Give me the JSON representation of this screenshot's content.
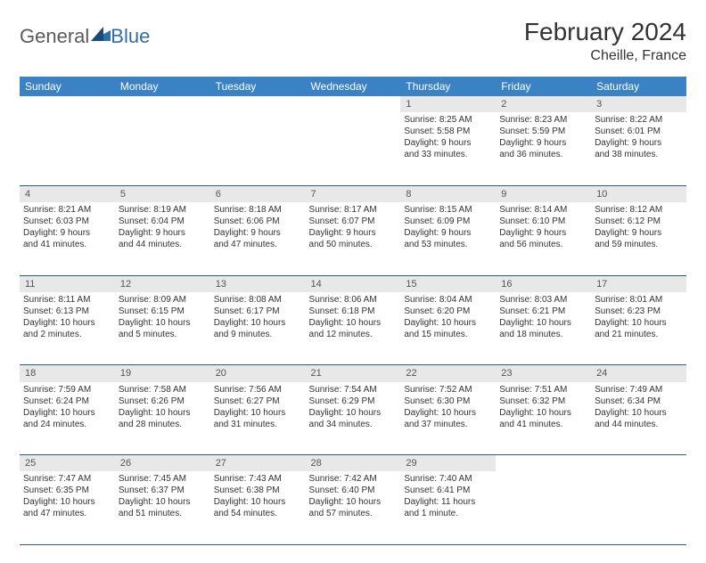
{
  "brand": {
    "part1": "General",
    "part2": "Blue"
  },
  "header": {
    "title": "February 2024",
    "location": "Cheille, France"
  },
  "style": {
    "header_bg": "#3b82c4",
    "header_text": "#ffffff",
    "daynum_bg": "#e8e8e8",
    "row_border": "#2c5a85",
    "body_text": "#333333",
    "logo_gray": "#5a5a5a",
    "logo_blue": "#2f6fa7",
    "title_fontsize": 28,
    "location_fontsize": 16,
    "dayhead_fontsize": 12,
    "cell_fontsize": 10
  },
  "weekdays": [
    "Sunday",
    "Monday",
    "Tuesday",
    "Wednesday",
    "Thursday",
    "Friday",
    "Saturday"
  ],
  "weeks": [
    [
      null,
      null,
      null,
      null,
      {
        "n": "1",
        "sr": "Sunrise: 8:25 AM",
        "ss": "Sunset: 5:58 PM",
        "d1": "Daylight: 9 hours",
        "d2": "and 33 minutes."
      },
      {
        "n": "2",
        "sr": "Sunrise: 8:23 AM",
        "ss": "Sunset: 5:59 PM",
        "d1": "Daylight: 9 hours",
        "d2": "and 36 minutes."
      },
      {
        "n": "3",
        "sr": "Sunrise: 8:22 AM",
        "ss": "Sunset: 6:01 PM",
        "d1": "Daylight: 9 hours",
        "d2": "and 38 minutes."
      }
    ],
    [
      {
        "n": "4",
        "sr": "Sunrise: 8:21 AM",
        "ss": "Sunset: 6:03 PM",
        "d1": "Daylight: 9 hours",
        "d2": "and 41 minutes."
      },
      {
        "n": "5",
        "sr": "Sunrise: 8:19 AM",
        "ss": "Sunset: 6:04 PM",
        "d1": "Daylight: 9 hours",
        "d2": "and 44 minutes."
      },
      {
        "n": "6",
        "sr": "Sunrise: 8:18 AM",
        "ss": "Sunset: 6:06 PM",
        "d1": "Daylight: 9 hours",
        "d2": "and 47 minutes."
      },
      {
        "n": "7",
        "sr": "Sunrise: 8:17 AM",
        "ss": "Sunset: 6:07 PM",
        "d1": "Daylight: 9 hours",
        "d2": "and 50 minutes."
      },
      {
        "n": "8",
        "sr": "Sunrise: 8:15 AM",
        "ss": "Sunset: 6:09 PM",
        "d1": "Daylight: 9 hours",
        "d2": "and 53 minutes."
      },
      {
        "n": "9",
        "sr": "Sunrise: 8:14 AM",
        "ss": "Sunset: 6:10 PM",
        "d1": "Daylight: 9 hours",
        "d2": "and 56 minutes."
      },
      {
        "n": "10",
        "sr": "Sunrise: 8:12 AM",
        "ss": "Sunset: 6:12 PM",
        "d1": "Daylight: 9 hours",
        "d2": "and 59 minutes."
      }
    ],
    [
      {
        "n": "11",
        "sr": "Sunrise: 8:11 AM",
        "ss": "Sunset: 6:13 PM",
        "d1": "Daylight: 10 hours",
        "d2": "and 2 minutes."
      },
      {
        "n": "12",
        "sr": "Sunrise: 8:09 AM",
        "ss": "Sunset: 6:15 PM",
        "d1": "Daylight: 10 hours",
        "d2": "and 5 minutes."
      },
      {
        "n": "13",
        "sr": "Sunrise: 8:08 AM",
        "ss": "Sunset: 6:17 PM",
        "d1": "Daylight: 10 hours",
        "d2": "and 9 minutes."
      },
      {
        "n": "14",
        "sr": "Sunrise: 8:06 AM",
        "ss": "Sunset: 6:18 PM",
        "d1": "Daylight: 10 hours",
        "d2": "and 12 minutes."
      },
      {
        "n": "15",
        "sr": "Sunrise: 8:04 AM",
        "ss": "Sunset: 6:20 PM",
        "d1": "Daylight: 10 hours",
        "d2": "and 15 minutes."
      },
      {
        "n": "16",
        "sr": "Sunrise: 8:03 AM",
        "ss": "Sunset: 6:21 PM",
        "d1": "Daylight: 10 hours",
        "d2": "and 18 minutes."
      },
      {
        "n": "17",
        "sr": "Sunrise: 8:01 AM",
        "ss": "Sunset: 6:23 PM",
        "d1": "Daylight: 10 hours",
        "d2": "and 21 minutes."
      }
    ],
    [
      {
        "n": "18",
        "sr": "Sunrise: 7:59 AM",
        "ss": "Sunset: 6:24 PM",
        "d1": "Daylight: 10 hours",
        "d2": "and 24 minutes."
      },
      {
        "n": "19",
        "sr": "Sunrise: 7:58 AM",
        "ss": "Sunset: 6:26 PM",
        "d1": "Daylight: 10 hours",
        "d2": "and 28 minutes."
      },
      {
        "n": "20",
        "sr": "Sunrise: 7:56 AM",
        "ss": "Sunset: 6:27 PM",
        "d1": "Daylight: 10 hours",
        "d2": "and 31 minutes."
      },
      {
        "n": "21",
        "sr": "Sunrise: 7:54 AM",
        "ss": "Sunset: 6:29 PM",
        "d1": "Daylight: 10 hours",
        "d2": "and 34 minutes."
      },
      {
        "n": "22",
        "sr": "Sunrise: 7:52 AM",
        "ss": "Sunset: 6:30 PM",
        "d1": "Daylight: 10 hours",
        "d2": "and 37 minutes."
      },
      {
        "n": "23",
        "sr": "Sunrise: 7:51 AM",
        "ss": "Sunset: 6:32 PM",
        "d1": "Daylight: 10 hours",
        "d2": "and 41 minutes."
      },
      {
        "n": "24",
        "sr": "Sunrise: 7:49 AM",
        "ss": "Sunset: 6:34 PM",
        "d1": "Daylight: 10 hours",
        "d2": "and 44 minutes."
      }
    ],
    [
      {
        "n": "25",
        "sr": "Sunrise: 7:47 AM",
        "ss": "Sunset: 6:35 PM",
        "d1": "Daylight: 10 hours",
        "d2": "and 47 minutes."
      },
      {
        "n": "26",
        "sr": "Sunrise: 7:45 AM",
        "ss": "Sunset: 6:37 PM",
        "d1": "Daylight: 10 hours",
        "d2": "and 51 minutes."
      },
      {
        "n": "27",
        "sr": "Sunrise: 7:43 AM",
        "ss": "Sunset: 6:38 PM",
        "d1": "Daylight: 10 hours",
        "d2": "and 54 minutes."
      },
      {
        "n": "28",
        "sr": "Sunrise: 7:42 AM",
        "ss": "Sunset: 6:40 PM",
        "d1": "Daylight: 10 hours",
        "d2": "and 57 minutes."
      },
      {
        "n": "29",
        "sr": "Sunrise: 7:40 AM",
        "ss": "Sunset: 6:41 PM",
        "d1": "Daylight: 11 hours",
        "d2": "and 1 minute."
      },
      null,
      null
    ]
  ]
}
